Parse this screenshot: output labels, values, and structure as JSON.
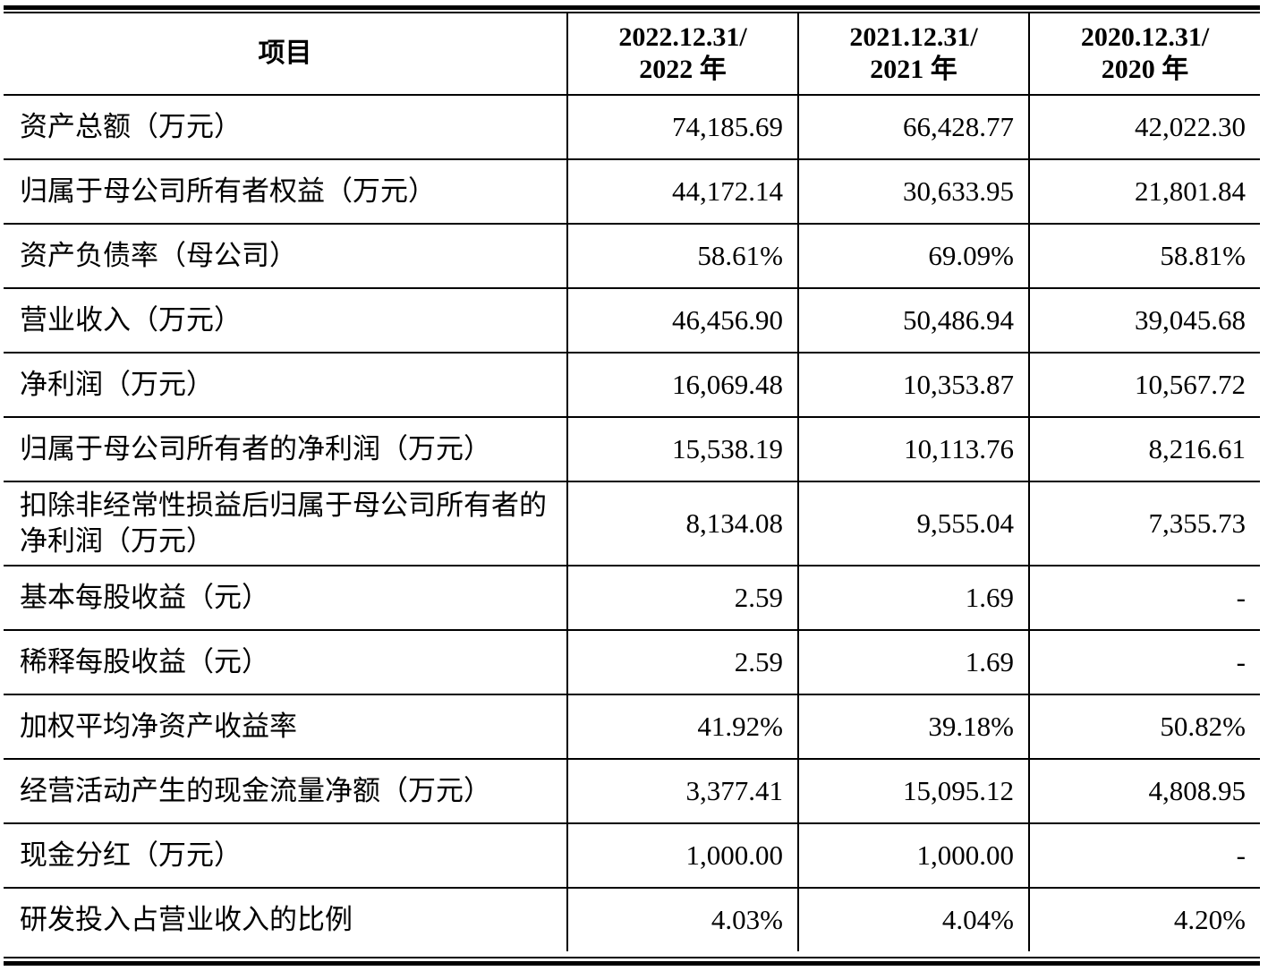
{
  "header": {
    "item": "项目",
    "col1": {
      "line1": "2022.12.31/",
      "line2": "2022 年"
    },
    "col2": {
      "line1": "2021.12.31/",
      "line2": "2021 年"
    },
    "col3": {
      "line1": "2020.12.31/",
      "line2": "2020 年"
    }
  },
  "rows": [
    {
      "item": "资产总额（万元）",
      "v2022": "74,185.69",
      "v2021": "66,428.77",
      "v2020": "42,022.30"
    },
    {
      "item": "归属于母公司所有者权益（万元）",
      "v2022": "44,172.14",
      "v2021": "30,633.95",
      "v2020": "21,801.84"
    },
    {
      "item": "资产负债率（母公司）",
      "v2022": "58.61%",
      "v2021": "69.09%",
      "v2020": "58.81%"
    },
    {
      "item": "营业收入（万元）",
      "v2022": "46,456.90",
      "v2021": "50,486.94",
      "v2020": "39,045.68"
    },
    {
      "item": "净利润（万元）",
      "v2022": "16,069.48",
      "v2021": "10,353.87",
      "v2020": "10,567.72"
    },
    {
      "item": "归属于母公司所有者的净利润（万元）",
      "v2022": "15,538.19",
      "v2021": "10,113.76",
      "v2020": "8,216.61"
    },
    {
      "item": "扣除非经常性损益后归属于母公司所有者的净利润（万元）",
      "v2022": "8,134.08",
      "v2021": "9,555.04",
      "v2020": "7,355.73"
    },
    {
      "item": "基本每股收益（元）",
      "v2022": "2.59",
      "v2021": "1.69",
      "v2020": "-"
    },
    {
      "item": "稀释每股收益（元）",
      "v2022": "2.59",
      "v2021": "1.69",
      "v2020": "-"
    },
    {
      "item": "加权平均净资产收益率",
      "v2022": "41.92%",
      "v2021": "39.18%",
      "v2020": "50.82%"
    },
    {
      "item": "经营活动产生的现金流量净额（万元）",
      "v2022": "3,377.41",
      "v2021": "15,095.12",
      "v2020": "4,808.95"
    },
    {
      "item": "现金分红（万元）",
      "v2022": "1,000.00",
      "v2021": "1,000.00",
      "v2020": "-"
    },
    {
      "item": "研发投入占营业收入的比例",
      "v2022": "4.03%",
      "v2021": "4.04%",
      "v2020": "4.20%"
    }
  ]
}
